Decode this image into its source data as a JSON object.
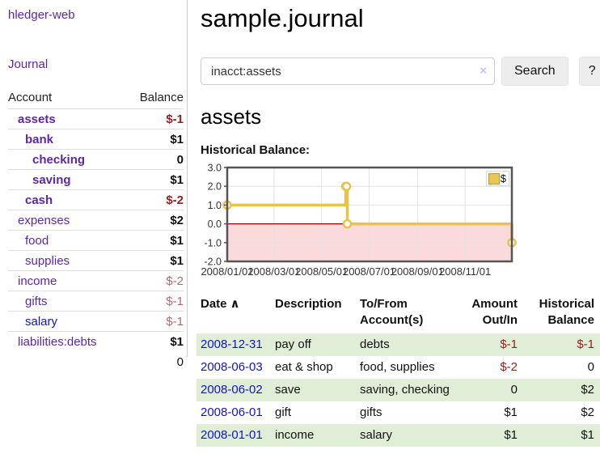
{
  "app": {
    "brand": "hledger-web",
    "nav_journal": "Journal"
  },
  "sidebar": {
    "columns": {
      "account": "Account",
      "balance": "Balance"
    },
    "accounts": [
      {
        "name": "assets",
        "indent": 1,
        "bold": true,
        "blue": false,
        "balance": "$-1",
        "balance_style": "neg"
      },
      {
        "name": "bank",
        "indent": 2,
        "bold": true,
        "blue": false,
        "balance": "$1",
        "balance_style": "pos"
      },
      {
        "name": "checking",
        "indent": 3,
        "bold": true,
        "blue": false,
        "balance": "0",
        "balance_style": "pos"
      },
      {
        "name": "saving",
        "indent": 3,
        "bold": true,
        "blue": false,
        "balance": "$1",
        "balance_style": "pos"
      },
      {
        "name": "cash",
        "indent": 2,
        "bold": true,
        "blue": false,
        "balance": "$-2",
        "balance_style": "neg"
      },
      {
        "name": "expenses",
        "indent": 1,
        "bold": false,
        "blue": false,
        "balance": "$2",
        "balance_style": "pos"
      },
      {
        "name": "food",
        "indent": 2,
        "bold": false,
        "blue": false,
        "balance": "$1",
        "balance_style": "pos"
      },
      {
        "name": "supplies",
        "indent": 2,
        "bold": false,
        "blue": false,
        "balance": "$1",
        "balance_style": "pos"
      },
      {
        "name": "income",
        "indent": 1,
        "bold": false,
        "blue": false,
        "balance": "$-2",
        "balance_style": "muted"
      },
      {
        "name": "gifts",
        "indent": 2,
        "bold": false,
        "blue": false,
        "balance": "$-1",
        "balance_style": "muted"
      },
      {
        "name": "salary",
        "indent": 2,
        "bold": false,
        "blue": true,
        "balance": "$-1",
        "balance_style": "muted"
      },
      {
        "name": "liabilities:debts",
        "indent": 1,
        "bold": false,
        "blue": false,
        "balance": "$1",
        "balance_style": "pos"
      }
    ],
    "total": "0"
  },
  "header": {
    "title": "sample.journal"
  },
  "search": {
    "value": "inacct:assets",
    "clear_icon": "×",
    "search_button": "Search",
    "help_button": "?"
  },
  "account_page": {
    "heading": "assets",
    "chart_label": "Historical Balance:"
  },
  "chart_data": {
    "type": "line",
    "title": "Historical Balance:",
    "step": true,
    "series": [
      {
        "name": "$",
        "points": [
          [
            "2008-01-01",
            1
          ],
          [
            "2008-06-01",
            2
          ],
          [
            "2008-06-02",
            2
          ],
          [
            "2008-06-03",
            0
          ],
          [
            "2008-12-31",
            -1
          ]
        ]
      }
    ],
    "x_range": [
      "2008-01-01",
      "2008-12-31"
    ],
    "x_ticks": [
      "2008/01/01",
      "2008/03/01",
      "2008/05/01",
      "2008/07/01",
      "2008/09/01",
      "2008/11/01"
    ],
    "y_ticks": [
      "3.0",
      "2.0",
      "1.0",
      "0.0",
      "-1.0",
      "-2.0"
    ],
    "ylim": [
      -2,
      3
    ],
    "legend": "$",
    "legend_position": "top-right",
    "grid": true,
    "line_color": "#e8c24a",
    "negative_region_color": "#fadada",
    "zero_line_color": "#8b0000"
  },
  "register": {
    "columns": {
      "date": "Date",
      "description": "Description",
      "tofrom": "To/From Account(s)",
      "amount": "Amount Out/In",
      "balance": "Historical Balance"
    },
    "sort_icon": "∧",
    "rows": [
      {
        "date": "2008-12-31",
        "description": "pay off",
        "accounts": "debts",
        "amount": "$-1",
        "amount_neg": true,
        "balance": "$-1",
        "balance_neg": true,
        "shaded": true
      },
      {
        "date": "2008-06-03",
        "description": "eat & shop",
        "accounts": "food, supplies",
        "amount": "$-2",
        "amount_neg": true,
        "balance": "0",
        "balance_neg": false,
        "shaded": false
      },
      {
        "date": "2008-06-02",
        "description": "save",
        "accounts": "saving, checking",
        "amount": "0",
        "amount_neg": false,
        "balance": "$2",
        "balance_neg": false,
        "shaded": true
      },
      {
        "date": "2008-06-01",
        "description": "gift",
        "accounts": "gifts",
        "amount": "$1",
        "amount_neg": false,
        "balance": "$2",
        "balance_neg": false,
        "shaded": false
      },
      {
        "date": "2008-01-01",
        "description": "income",
        "accounts": "salary",
        "amount": "$1",
        "amount_neg": false,
        "balance": "$1",
        "balance_neg": false,
        "shaded": true
      }
    ]
  }
}
